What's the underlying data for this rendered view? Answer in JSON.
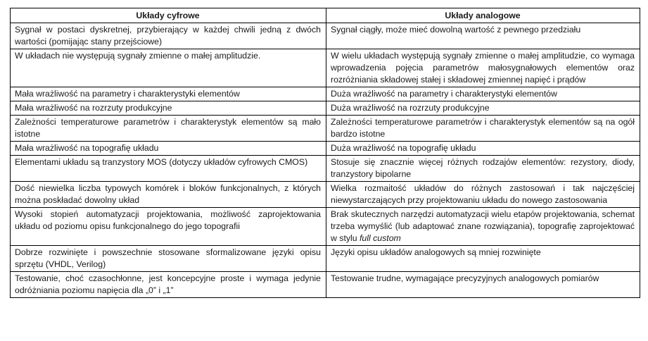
{
  "table": {
    "headers": [
      "Układy cyfrowe",
      "Układy analogowe"
    ],
    "rows": [
      [
        "Sygnał w postaci dyskretnej, przybierający w każdej chwili jedną z dwóch wartości (pomijając stany przejściowe)",
        "Sygnał ciągły, może mieć dowolną wartość z pewnego przedziału"
      ],
      [
        "W układach nie występują sygnały zmienne o małej amplitudzie.",
        "W wielu układach występują sygnały zmienne o małej amplitudzie, co wymaga wprowadzenia pojęcia parametrów małosygnałowych elementów oraz rozróżniania składowej stałej i składowej zmiennej napięć i prądów"
      ],
      [
        "Mała wrażliwość na parametry i charakterystyki elementów",
        "Duża wrażliwość na parametry i charakterystyki elementów"
      ],
      [
        "Mała wrażliwość na rozrzuty produkcyjne",
        "Duża wrażliwość na rozrzuty produkcyjne"
      ],
      [
        "Zależności temperaturowe parametrów i charakterystyk elementów są mało istotne",
        "Zależności temperaturowe parametrów i charakterystyk elementów są na ogół bardzo istotne"
      ],
      [
        "Mała wrażliwość na topografię układu",
        "Duża wrażliwość na topografię układu"
      ],
      [
        "Elementami układu są tranzystory MOS (dotyczy układów cyfrowych CMOS)",
        "Stosuje się znacznie więcej różnych rodzajów elementów: rezystory, diody, tranzystory bipolarne"
      ],
      [
        "Dość niewielka liczba typowych komórek i bloków funkcjonalnych, z których można poskładać dowolny układ",
        "Wielka rozmaitość układów do różnych zastosowań i tak najczęściej niewystarczających przy projektowaniu układu do nowego zastosowania"
      ],
      [
        "Wysoki stopień automatyzacji projektowania, możliwość zaprojektowania układu od poziomu opisu funkcjonalnego do jego topografii",
        "Brak skutecznych narzędzi automatyzacji wielu etapów projektowania, schemat trzeba wymyślić (lub adaptować znane rozwiązania), topografię zaprojektować w stylu"
      ],
      [
        "Dobrze rozwinięte i powszechnie stosowane sformalizowane języki opisu sprzętu (VHDL, Verilog)",
        "Języki opisu układów analogowych są mniej rozwinięte"
      ],
      [
        "Testowanie, choć czasochłonne, jest koncepcyjne proste i wymaga jedynie odróżniania poziomu napięcia dla „0” i „1”",
        "Testowanie trudne, wymagające precyzyjnych analogowych pomiarów"
      ]
    ],
    "italic_suffix": "full custom"
  }
}
